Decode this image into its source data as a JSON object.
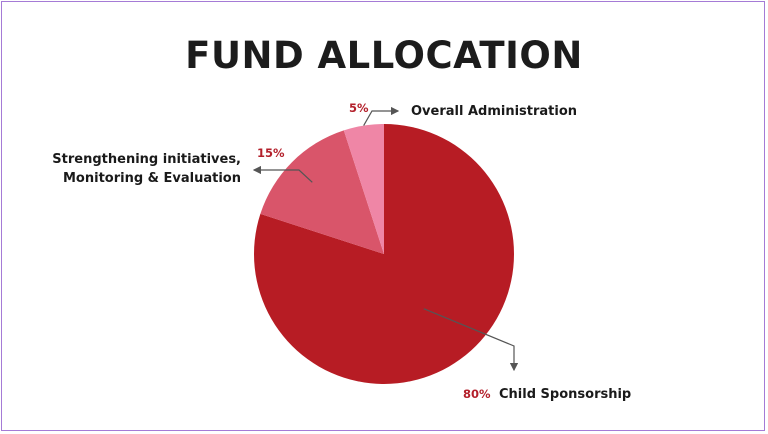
{
  "chart_data": {
    "type": "pie",
    "title": "FUND ALLOCATION",
    "slices": [
      {
        "label": "Child Sponsorship",
        "label_lines": [
          "Child Sponsorship"
        ],
        "value": 80,
        "value_label": "80%",
        "color": "#b71c24"
      },
      {
        "label": "Strengthening initiatives, Monitoring & Evaluation",
        "label_lines": [
          "Strengthening initiatives,",
          "Monitoring & Evaluation"
        ],
        "value": 15,
        "value_label": "15%",
        "color": "#d9556a"
      },
      {
        "label": "Overall Administration",
        "label_lines": [
          "Overall Administration"
        ],
        "value": 5,
        "value_label": "5%",
        "color": "#ef86a6"
      }
    ]
  }
}
